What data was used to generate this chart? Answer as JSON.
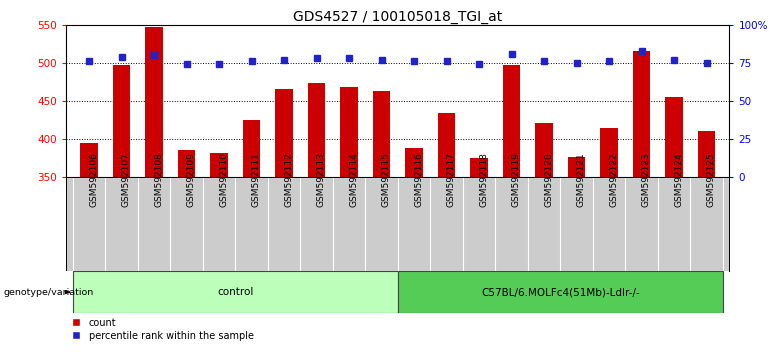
{
  "title": "GDS4527 / 100105018_TGI_at",
  "samples": [
    "GSM592106",
    "GSM592107",
    "GSM592108",
    "GSM592109",
    "GSM592110",
    "GSM592111",
    "GSM592112",
    "GSM592113",
    "GSM592114",
    "GSM592115",
    "GSM592116",
    "GSM592117",
    "GSM592118",
    "GSM592119",
    "GSM592120",
    "GSM592121",
    "GSM592122",
    "GSM592123",
    "GSM592124",
    "GSM592125"
  ],
  "counts": [
    395,
    497,
    547,
    386,
    381,
    425,
    465,
    473,
    468,
    463,
    388,
    434,
    375,
    497,
    421,
    376,
    414,
    515,
    455,
    410
  ],
  "percentile_ranks": [
    76,
    79,
    80,
    74,
    74,
    76,
    77,
    78,
    78,
    77,
    76,
    76,
    74,
    81,
    76,
    75,
    76,
    83,
    77,
    75
  ],
  "groups": [
    {
      "label": "control",
      "start": 0,
      "end": 10,
      "color": "#bbffbb"
    },
    {
      "label": "C57BL/6.MOLFc4(51Mb)-Ldlr-/-",
      "start": 10,
      "end": 20,
      "color": "#55cc55"
    }
  ],
  "ylim_left": [
    350,
    550
  ],
  "ylim_right": [
    0,
    100
  ],
  "yticks_left": [
    350,
    400,
    450,
    500,
    550
  ],
  "yticks_right": [
    0,
    25,
    50,
    75,
    100
  ],
  "bar_color": "#cc0000",
  "marker_color": "#2222cc",
  "background_color": "#ffffff",
  "tick_area_color": "#cccccc",
  "title_fontsize": 10,
  "tick_label_fontsize": 6.5,
  "bar_bottom": 350
}
